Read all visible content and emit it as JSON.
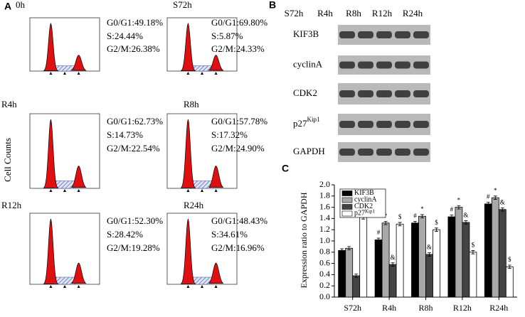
{
  "panel_a": {
    "label": "A",
    "y_label": "Cell Counts",
    "panels": [
      {
        "time": "0h",
        "stats": [
          "G0/G1:49.18%",
          "S:24.44%",
          "G2/M:26.38%"
        ]
      },
      {
        "time": "S72h",
        "stats": [
          "G0/G1:69.80%",
          "S:5.87%",
          "G2/M:24.33%"
        ]
      },
      {
        "time": "R4h",
        "stats": [
          "G0/G1:62.73%",
          "S:14.73%",
          "G2/M:22.54%"
        ]
      },
      {
        "time": "R8h",
        "stats": [
          "G0/G1:57.78%",
          "S:17.32%",
          "G2/M:24.90%"
        ]
      },
      {
        "time": "R12h",
        "stats": [
          "G0/G1:52.30%",
          "S:28.42%",
          "G2/M:19.28%"
        ]
      },
      {
        "time": "R24h",
        "stats": [
          "G0/G1:48.43%",
          "S:34.61%",
          "G2/M:16.96%"
        ]
      }
    ]
  },
  "panel_b": {
    "label": "B",
    "lanes": [
      "S72h",
      "R4h",
      "R8h",
      "R12h",
      "R24h"
    ],
    "rows": [
      {
        "name": "KIF3B"
      },
      {
        "name": "cyclinA"
      },
      {
        "name": "CDK2"
      },
      {
        "name": "p27",
        "sup": "Kip1"
      },
      {
        "name": "GAPDH"
      }
    ]
  },
  "panel_c_label": "C",
  "chart_data": {
    "type": "bar",
    "y_label": "Expression ratio to GAPDH",
    "categories": [
      "S72h",
      "R4h",
      "R8h",
      "R12h",
      "R24h"
    ],
    "ylim": [
      0,
      2.0
    ],
    "yticks": [
      {
        "value": 0,
        "label": "0.0"
      },
      {
        "value": 0.2,
        "label": "0.2"
      },
      {
        "value": 0.4,
        "label": "0.4"
      },
      {
        "value": 0.6,
        "label": "0.6"
      },
      {
        "value": 0.8,
        "label": "0.8"
      },
      {
        "value": 1.0,
        "label": "1.0"
      },
      {
        "value": 1.2,
        "label": "1.2"
      },
      {
        "value": 1.4,
        "label": "1.4"
      },
      {
        "value": 1.6,
        "label": "1.6"
      },
      {
        "value": 1.8,
        "label": "1.8"
      },
      {
        "value": 2.0,
        "label": "2.0"
      }
    ],
    "series": [
      {
        "name": "KIF3B",
        "color": "#000000",
        "values": [
          0.83,
          1.02,
          1.32,
          1.43,
          1.66
        ],
        "errors": [
          0.03,
          0.03,
          0.03,
          0.03,
          0.03
        ],
        "markers": [
          null,
          "#",
          "#",
          "#",
          "#"
        ]
      },
      {
        "name": "cyclinA",
        "color": "#a8a8a8",
        "values": [
          0.87,
          1.32,
          1.44,
          1.6,
          1.77
        ],
        "errors": [
          0.03,
          0.03,
          0.03,
          0.03,
          0.03
        ],
        "markers": [
          null,
          "*",
          "*",
          "*",
          "*"
        ]
      },
      {
        "name": "CDK2",
        "color": "#444444",
        "values": [
          0.38,
          0.58,
          0.76,
          1.33,
          1.56
        ],
        "errors": [
          0.03,
          0.03,
          0.03,
          0.03,
          0.03
        ],
        "markers": [
          null,
          "&",
          "&",
          "&",
          "&"
        ]
      },
      {
        "name": "p27",
        "name_sup": "Kip1",
        "color": "#ffffff",
        "values": [
          1.42,
          1.3,
          1.2,
          0.8,
          0.54
        ],
        "errors": [
          0.03,
          0.03,
          0.03,
          0.03,
          0.03
        ],
        "markers": [
          null,
          "$",
          "$",
          "$",
          "$"
        ]
      }
    ]
  }
}
